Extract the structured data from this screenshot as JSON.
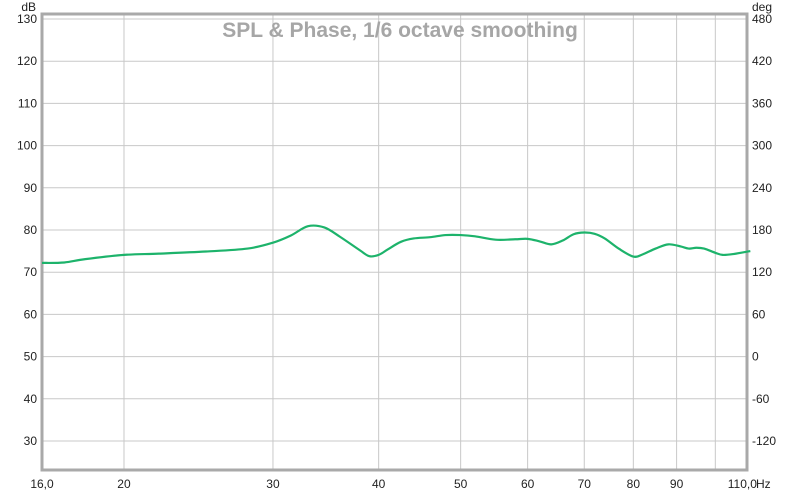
{
  "chart_data": {
    "type": "line",
    "title": "SPL & Phase, 1/6 octave smoothing",
    "xlabel": "Hz",
    "ylabel": "dB",
    "y2label": "deg",
    "xscale": "log",
    "xlim": [
      16,
      110
    ],
    "ylim": [
      25,
      131
    ],
    "y2lim": [
      -150,
      486
    ],
    "x_ticks": [
      {
        "value": 16,
        "label": "16,0"
      },
      {
        "value": 20,
        "label": "20"
      },
      {
        "value": 30,
        "label": "30"
      },
      {
        "value": 40,
        "label": "40"
      },
      {
        "value": 50,
        "label": "50"
      },
      {
        "value": 60,
        "label": "60"
      },
      {
        "value": 70,
        "label": "70"
      },
      {
        "value": 80,
        "label": "80"
      },
      {
        "value": 90,
        "label": "90"
      },
      {
        "value": 100,
        "label": ""
      },
      {
        "value": 110,
        "label": "110,0"
      }
    ],
    "y_ticks": [
      130,
      120,
      110,
      100,
      90,
      80,
      70,
      60,
      50,
      40,
      30
    ],
    "y2_ticks": [
      480,
      420,
      360,
      300,
      240,
      180,
      120,
      60,
      0,
      -60,
      -120
    ],
    "grid": true,
    "series": [
      {
        "name": "SPL",
        "color": "#1db36b",
        "x": [
          16,
          17,
          18,
          20,
          22,
          25,
          28,
          30,
          31.5,
          33,
          34.5,
          36,
          38,
          39,
          40,
          41,
          42.5,
          44,
          46,
          48,
          50,
          52,
          55,
          58,
          60,
          62,
          64,
          66,
          68,
          70,
          72,
          74,
          77,
          80,
          82,
          85,
          88,
          91,
          93,
          95,
          97,
          100,
          102,
          105,
          110
        ],
        "y": [
          72.2,
          72.3,
          73.1,
          74.1,
          74.4,
          74.9,
          75.6,
          77.0,
          78.7,
          80.9,
          80.6,
          78.4,
          75.2,
          73.8,
          74.1,
          75.4,
          77.2,
          78.0,
          78.3,
          78.8,
          78.8,
          78.5,
          77.7,
          77.8,
          77.9,
          77.3,
          76.6,
          77.5,
          79.0,
          79.4,
          79.1,
          78.0,
          75.5,
          73.7,
          74.2,
          75.6,
          76.6,
          76.1,
          75.6,
          75.8,
          75.6,
          74.6,
          74.1,
          74.3,
          75.0
        ]
      }
    ]
  }
}
